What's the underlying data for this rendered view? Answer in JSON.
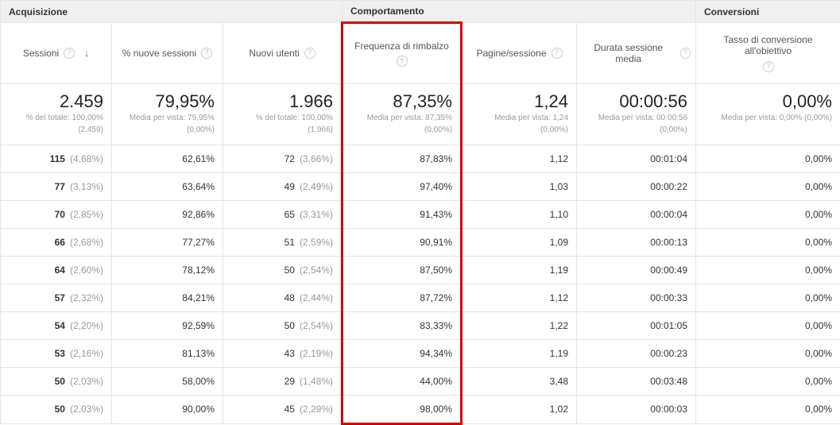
{
  "groups": {
    "acquisition": "Acquisizione",
    "behavior": "Comportamento",
    "conversions": "Conversioni"
  },
  "columns": {
    "sessions": {
      "label": "Sessioni",
      "sortable": true
    },
    "newSessionsPct": {
      "label": "% nuove sessioni"
    },
    "newUsers": {
      "label": "Nuovi utenti"
    },
    "bounceRate": {
      "label": "Frequenza di rimbalzo"
    },
    "pagesPerSession": {
      "label": "Pagine/sessione"
    },
    "avgDuration": {
      "label": "Durata sessione media"
    },
    "goalConvRate": {
      "label": "Tasso di conversione all'obiettivo"
    }
  },
  "summary": {
    "sessions": {
      "value": "2.459",
      "sub1": "% del totale: 100,00%",
      "sub2": "(2.459)"
    },
    "newSessionsPct": {
      "value": "79,95%",
      "sub1": "Media per vista: 79,95%",
      "sub2": "(0,00%)"
    },
    "newUsers": {
      "value": "1.966",
      "sub1": "% del totale: 100,00%",
      "sub2": "(1.966)"
    },
    "bounceRate": {
      "value": "87,35%",
      "sub1": "Media per vista: 87,35%",
      "sub2": "(0,00%)"
    },
    "pagesPerSession": {
      "value": "1,24",
      "sub1": "Media per vista: 1,24",
      "sub2": "(0,00%)"
    },
    "avgDuration": {
      "value": "00:00:56",
      "sub1": "Media per vista: 00:00:56",
      "sub2": "(0,00%)"
    },
    "goalConvRate": {
      "value": "0,00%",
      "sub1": "Media per vista: 0,00% (0,00%)",
      "sub2": ""
    }
  },
  "rows": [
    {
      "sessions": "115",
      "sessionsPct": "(4,68%)",
      "newSessionsPct": "62,61%",
      "newUsers": "72",
      "newUsersPct": "(3,66%)",
      "bounceRate": "87,83%",
      "pagesPerSession": "1,12",
      "avgDuration": "00:01:04",
      "goalConvRate": "0,00%"
    },
    {
      "sessions": "77",
      "sessionsPct": "(3,13%)",
      "newSessionsPct": "63,64%",
      "newUsers": "49",
      "newUsersPct": "(2,49%)",
      "bounceRate": "97,40%",
      "pagesPerSession": "1,03",
      "avgDuration": "00:00:22",
      "goalConvRate": "0,00%"
    },
    {
      "sessions": "70",
      "sessionsPct": "(2,85%)",
      "newSessionsPct": "92,86%",
      "newUsers": "65",
      "newUsersPct": "(3,31%)",
      "bounceRate": "91,43%",
      "pagesPerSession": "1,10",
      "avgDuration": "00:00:04",
      "goalConvRate": "0,00%"
    },
    {
      "sessions": "66",
      "sessionsPct": "(2,68%)",
      "newSessionsPct": "77,27%",
      "newUsers": "51",
      "newUsersPct": "(2,59%)",
      "bounceRate": "90,91%",
      "pagesPerSession": "1,09",
      "avgDuration": "00:00:13",
      "goalConvRate": "0,00%"
    },
    {
      "sessions": "64",
      "sessionsPct": "(2,60%)",
      "newSessionsPct": "78,12%",
      "newUsers": "50",
      "newUsersPct": "(2,54%)",
      "bounceRate": "87,50%",
      "pagesPerSession": "1,19",
      "avgDuration": "00:00:49",
      "goalConvRate": "0,00%"
    },
    {
      "sessions": "57",
      "sessionsPct": "(2,32%)",
      "newSessionsPct": "84,21%",
      "newUsers": "48",
      "newUsersPct": "(2,44%)",
      "bounceRate": "87,72%",
      "pagesPerSession": "1,12",
      "avgDuration": "00:00:33",
      "goalConvRate": "0,00%"
    },
    {
      "sessions": "54",
      "sessionsPct": "(2,20%)",
      "newSessionsPct": "92,59%",
      "newUsers": "50",
      "newUsersPct": "(2,54%)",
      "bounceRate": "83,33%",
      "pagesPerSession": "1,22",
      "avgDuration": "00:01:05",
      "goalConvRate": "0,00%"
    },
    {
      "sessions": "53",
      "sessionsPct": "(2,16%)",
      "newSessionsPct": "81,13%",
      "newUsers": "43",
      "newUsersPct": "(2,19%)",
      "bounceRate": "94,34%",
      "pagesPerSession": "1,19",
      "avgDuration": "00:00:23",
      "goalConvRate": "0,00%"
    },
    {
      "sessions": "50",
      "sessionsPct": "(2,03%)",
      "newSessionsPct": "58,00%",
      "newUsers": "29",
      "newUsersPct": "(1,48%)",
      "bounceRate": "44,00%",
      "pagesPerSession": "3,48",
      "avgDuration": "00:03:48",
      "goalConvRate": "0,00%"
    },
    {
      "sessions": "50",
      "sessionsPct": "(2,03%)",
      "newSessionsPct": "90,00%",
      "newUsers": "45",
      "newUsersPct": "(2,29%)",
      "bounceRate": "98,00%",
      "pagesPerSession": "1,02",
      "avgDuration": "00:00:03",
      "goalConvRate": "0,00%"
    }
  ],
  "style": {
    "highlightColor": "#d40000",
    "borderColor": "#e5e5e5",
    "groupBg": "#f0f0f0",
    "subTextColor": "#9a9a9a"
  }
}
